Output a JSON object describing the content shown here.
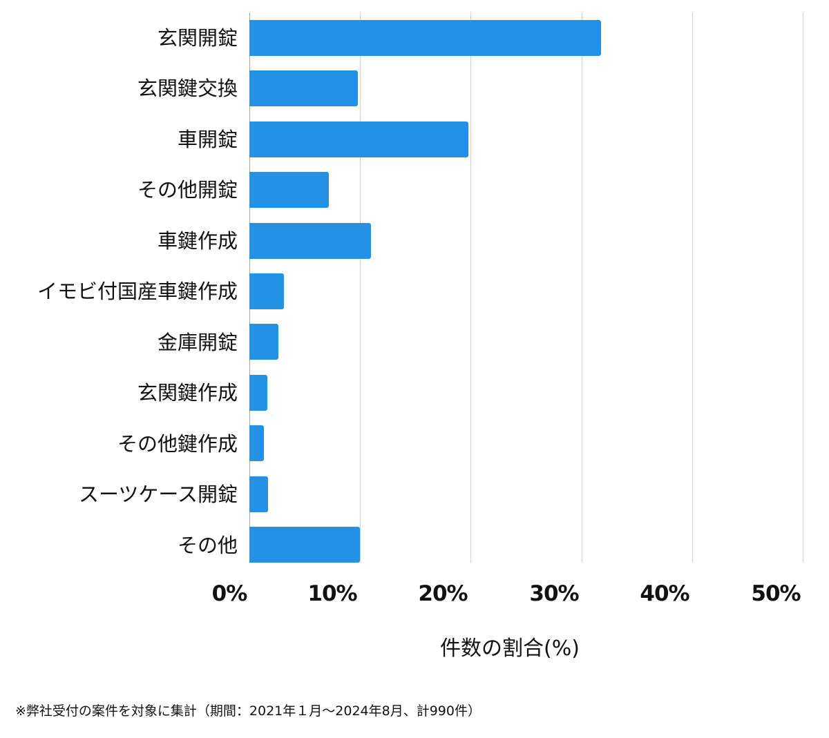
{
  "chart_data": {
    "type": "bar",
    "orientation": "horizontal",
    "title": "",
    "xlabel": "件数の割合(%)",
    "ylabel": "",
    "xlim": [
      0,
      50
    ],
    "x_ticks": [
      "0%",
      "10%",
      "20%",
      "30%",
      "40%",
      "50%"
    ],
    "grid": true,
    "legend": null,
    "categories": [
      "玄関開錠",
      "玄関鍵交換",
      "車開錠",
      "その他開錠",
      "車鍵作成",
      "イモビ付国産車鍵作成",
      "金庫開錠",
      "玄関鍵作成",
      "その他鍵作成",
      "スーツケース開錠",
      "その他"
    ],
    "values": [
      31.8,
      9.8,
      19.8,
      7.2,
      11.0,
      3.1,
      2.6,
      1.6,
      1.3,
      1.7,
      10.0
    ],
    "bar_color": "#2492e4",
    "footnote": "※弊社受付の案件を対象に集計（期間：2021年１月～2024年8月、計990件）"
  },
  "labels": {
    "categories": [
      "玄関開錠",
      "玄関鍵交換",
      "車開錠",
      "その他開錠",
      "車鍵作成",
      "イモビ付国産車鍵作成",
      "金庫開錠",
      "玄関鍵作成",
      "その他鍵作成",
      "スーツケース開錠",
      "その他"
    ],
    "ticks": [
      "0%",
      "10%",
      "20%",
      "30%",
      "40%",
      "50%"
    ],
    "x_title": "件数の割合(%)",
    "footnote": "※弊社受付の案件を対象に集計（期間：2021年１月～2024年8月、計990件）"
  }
}
